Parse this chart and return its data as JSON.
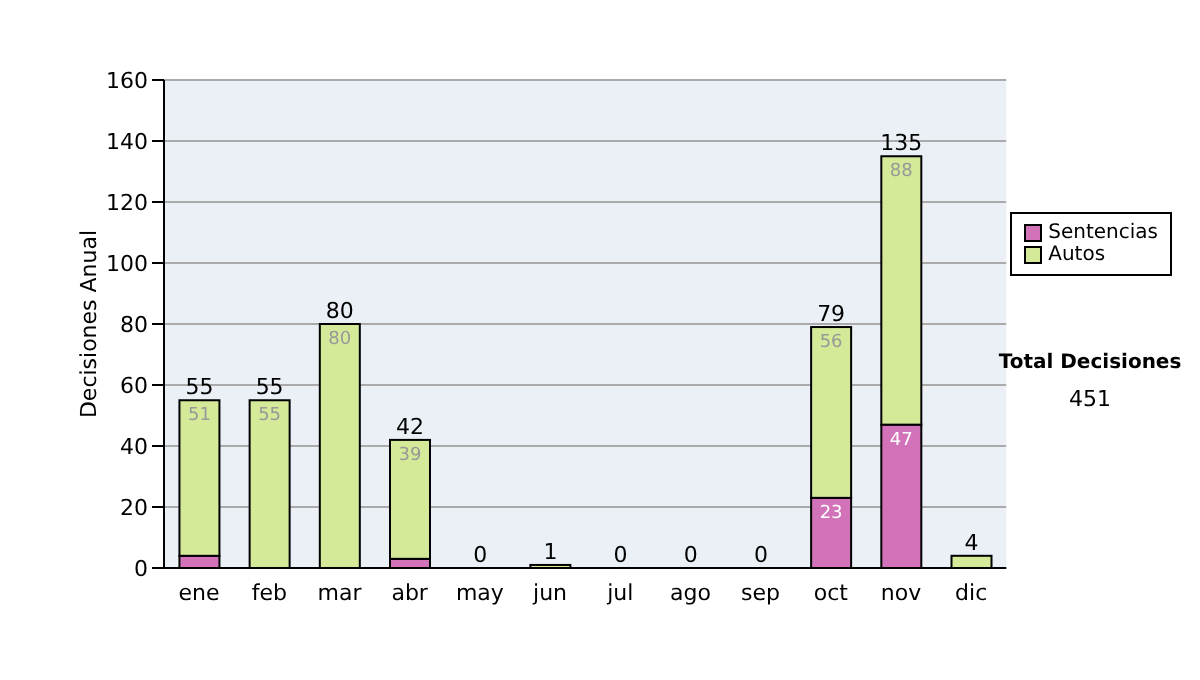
{
  "chart_data": {
    "type": "bar",
    "stacked": true,
    "ylabel": "Decisiones Anual",
    "categories": [
      "ene",
      "feb",
      "mar",
      "abr",
      "may",
      "jun",
      "jul",
      "ago",
      "sep",
      "oct",
      "nov",
      "dic"
    ],
    "series": [
      {
        "name": "Sentencias",
        "color": "#d272b9",
        "values": [
          4,
          0,
          0,
          3,
          0,
          0,
          0,
          0,
          0,
          23,
          47,
          0
        ],
        "value_labels": [
          null,
          null,
          null,
          null,
          null,
          null,
          null,
          null,
          null,
          "23",
          "47",
          null
        ]
      },
      {
        "name": "Autos",
        "color": "#d4ea98",
        "values": [
          51,
          55,
          80,
          39,
          0,
          1,
          0,
          0,
          0,
          56,
          88,
          4
        ],
        "value_labels": [
          "51",
          "55",
          "80",
          "39",
          null,
          null,
          null,
          null,
          null,
          "56",
          "88",
          null
        ]
      }
    ],
    "totals": [
      "55",
      "55",
      "80",
      "42",
      "0",
      "1",
      "0",
      "0",
      "0",
      "79",
      "135",
      "4"
    ],
    "ylim": [
      0,
      160
    ],
    "yticks": [
      0,
      20,
      40,
      60,
      80,
      100,
      120,
      140,
      160
    ],
    "grid": "y",
    "legend": "right",
    "annotations": [
      "Total Decisiones",
      "451"
    ]
  }
}
